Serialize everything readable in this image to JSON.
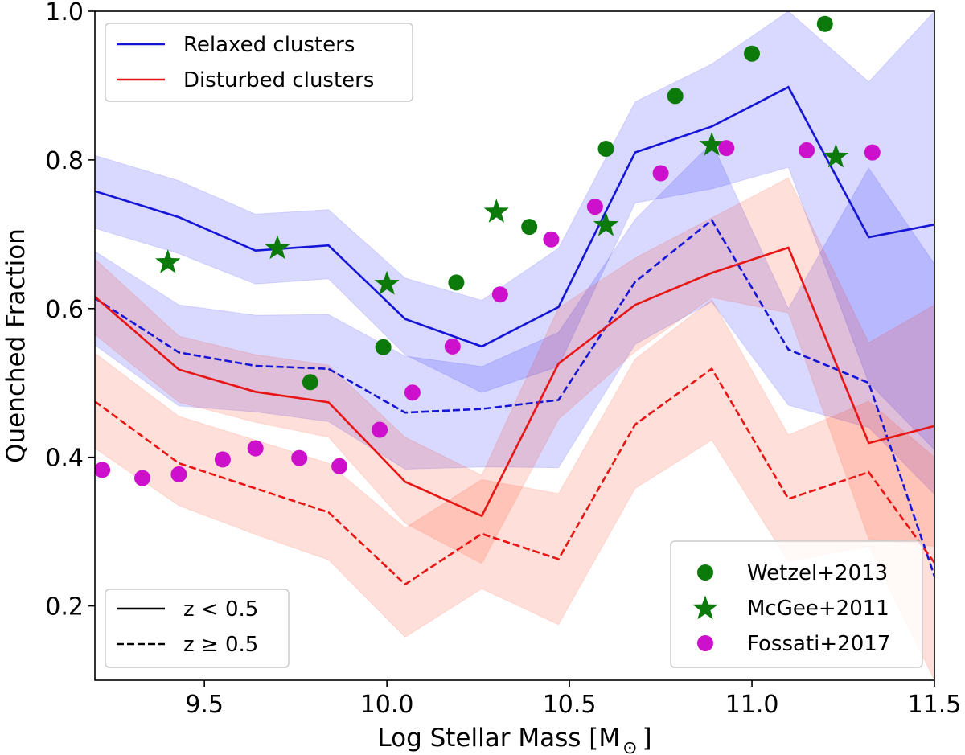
{
  "chart_data": {
    "type": "line",
    "xlabel": "Log Stellar Mass [M",
    "xlabel_sub": "⊙",
    "xlabel_close": "]",
    "ylabel": "Quenched Fraction",
    "xlim": [
      9.2,
      11.5
    ],
    "ylim": [
      0.1,
      1.0
    ],
    "xticks": [
      9.5,
      10.0,
      10.5,
      11.0,
      11.5
    ],
    "xtick_labels": [
      "9.5",
      "10.0",
      "10.5",
      "11.0",
      "11.5"
    ],
    "yticks": [
      0.2,
      0.4,
      0.6,
      0.8,
      1.0
    ],
    "ytick_labels": [
      "0.2",
      "0.4",
      "0.6",
      "0.8",
      "1.0"
    ],
    "grid": false,
    "colors": {
      "relaxed": "#1515d6",
      "disturbed": "#e81515",
      "relaxed_band": "#0000ff",
      "disturbed_band": "#ff2a00",
      "wetzel": "#0b7a0b",
      "mcgee": "#0b7a0b",
      "fossati": "#cc10cc"
    },
    "series": [
      {
        "name": "Relaxed clusters, z < 0.5",
        "color_key": "relaxed",
        "style": "solid",
        "x": [
          9.2,
          9.43,
          9.64,
          9.84,
          10.05,
          10.26,
          10.47,
          10.68,
          10.89,
          11.1,
          11.32,
          11.5
        ],
        "y": [
          0.758,
          0.723,
          0.678,
          0.685,
          0.586,
          0.549,
          0.602,
          0.81,
          0.845,
          0.898,
          0.696,
          0.713
        ],
        "band_lo": [
          0.708,
          0.674,
          0.633,
          0.64,
          0.538,
          0.487,
          0.522,
          0.742,
          0.761,
          0.79,
          0.5,
          0.41
        ],
        "band_hi": [
          0.806,
          0.772,
          0.727,
          0.733,
          0.641,
          0.611,
          0.681,
          0.878,
          0.929,
          1.0,
          0.905,
          1.0
        ]
      },
      {
        "name": "Relaxed clusters, z ≥ 0.5",
        "color_key": "relaxed",
        "style": "dashed",
        "x": [
          9.2,
          9.43,
          9.64,
          9.84,
          10.05,
          10.26,
          10.47,
          10.68,
          10.89,
          11.1,
          11.32,
          11.5
        ],
        "y": [
          0.614,
          0.541,
          0.523,
          0.519,
          0.46,
          0.465,
          0.477,
          0.636,
          0.719,
          0.545,
          0.5,
          0.24
        ],
        "band_lo": [
          0.551,
          0.469,
          0.461,
          0.448,
          0.384,
          0.387,
          0.386,
          0.552,
          0.609,
          0.47,
          0.44,
          0.35
        ],
        "band_hi": [
          0.677,
          0.605,
          0.591,
          0.592,
          0.536,
          0.522,
          0.568,
          0.72,
          0.823,
          0.6,
          0.789,
          0.66
        ]
      },
      {
        "name": "Disturbed clusters, z < 0.5",
        "color_key": "disturbed",
        "style": "solid",
        "x": [
          9.2,
          9.43,
          9.64,
          9.84,
          10.05,
          10.26,
          10.47,
          10.68,
          10.89,
          11.1,
          11.32,
          11.5
        ],
        "y": [
          0.616,
          0.518,
          0.488,
          0.474,
          0.367,
          0.321,
          0.526,
          0.605,
          0.648,
          0.682,
          0.419,
          0.442
        ],
        "band_lo": [
          0.565,
          0.474,
          0.447,
          0.427,
          0.311,
          0.257,
          0.451,
          0.542,
          0.615,
          0.594,
          0.29,
          0.28
        ],
        "band_hi": [
          0.667,
          0.563,
          0.538,
          0.524,
          0.427,
          0.376,
          0.601,
          0.668,
          0.722,
          0.776,
          0.554,
          0.605
        ]
      },
      {
        "name": "Disturbed clusters, z ≥ 0.5",
        "color_key": "disturbed",
        "style": "dashed",
        "x": [
          9.2,
          9.43,
          9.64,
          9.84,
          10.05,
          10.26,
          10.47,
          10.68,
          10.89,
          11.1,
          11.32,
          11.5
        ],
        "y": [
          0.475,
          0.392,
          0.358,
          0.326,
          0.229,
          0.297,
          0.263,
          0.444,
          0.519,
          0.344,
          0.38,
          0.258
        ],
        "band_lo": [
          0.412,
          0.335,
          0.296,
          0.262,
          0.158,
          0.223,
          0.175,
          0.358,
          0.423,
          0.26,
          0.28,
          0.1
        ],
        "band_hi": [
          0.54,
          0.455,
          0.423,
          0.392,
          0.305,
          0.37,
          0.351,
          0.532,
          0.612,
          0.43,
          0.475,
          0.4
        ]
      }
    ],
    "scatter": [
      {
        "name": "Wetzel+2013",
        "marker": "circle",
        "color_key": "wetzel",
        "x": [
          9.79,
          9.99,
          10.19,
          10.39,
          10.6,
          10.79,
          11.0,
          11.2
        ],
        "y": [
          0.501,
          0.548,
          0.635,
          0.71,
          0.815,
          0.886,
          0.943,
          0.983
        ]
      },
      {
        "name": "McGee+2011",
        "marker": "star",
        "color_key": "mcgee",
        "x": [
          9.4,
          9.7,
          10.0,
          10.3,
          10.6,
          10.89,
          11.23
        ],
        "y": [
          0.662,
          0.681,
          0.633,
          0.73,
          0.712,
          0.82,
          0.804
        ]
      },
      {
        "name": "Fossati+2017",
        "marker": "circle",
        "color_key": "fossati",
        "x": [
          9.22,
          9.33,
          9.43,
          9.55,
          9.64,
          9.76,
          9.87,
          9.98,
          10.07,
          10.18,
          10.31,
          10.45,
          10.57,
          10.75,
          10.93,
          11.15,
          11.33
        ],
        "y": [
          0.383,
          0.372,
          0.377,
          0.397,
          0.412,
          0.399,
          0.388,
          0.437,
          0.487,
          0.549,
          0.619,
          0.693,
          0.737,
          0.782,
          0.816,
          0.813,
          0.81
        ]
      }
    ],
    "legends": {
      "clusters": {
        "placement": "top-left",
        "entries": [
          {
            "label": "Relaxed clusters",
            "color_key": "relaxed"
          },
          {
            "label": "Disturbed clusters",
            "color_key": "disturbed"
          }
        ]
      },
      "redshift": {
        "placement": "bottom-left",
        "entries": [
          {
            "label": "z < 0.5",
            "style": "solid"
          },
          {
            "label": "z ≥ 0.5",
            "style": "dashed"
          }
        ]
      },
      "literature": {
        "placement": "bottom-right",
        "entries": [
          {
            "label": "Wetzel+2013",
            "marker": "circle",
            "color_key": "wetzel"
          },
          {
            "label": "McGee+2011",
            "marker": "star",
            "color_key": "mcgee"
          },
          {
            "label": "Fossati+2017",
            "marker": "circle",
            "color_key": "fossati"
          }
        ]
      }
    }
  }
}
